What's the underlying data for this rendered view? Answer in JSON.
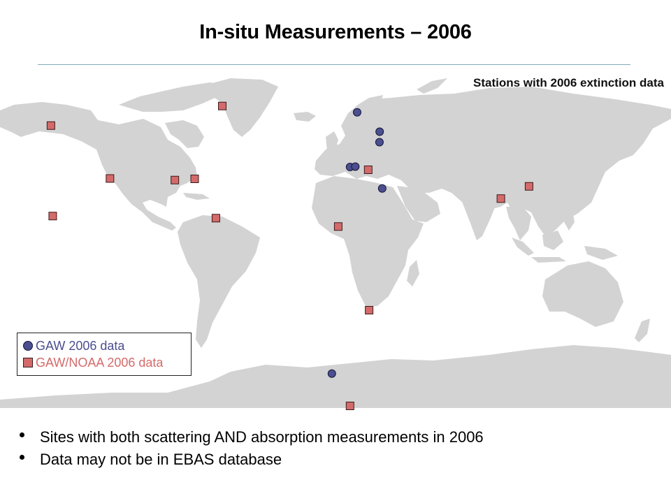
{
  "slide": {
    "title": "In-situ Measurements – 2006",
    "bullets": [
      "Sites with both scattering AND absorption measurements in 2006",
      "Data may  not be in EBAS database"
    ]
  },
  "map": {
    "heading": "Stations with 2006 extinction data",
    "land_color": "#d3d3d3",
    "legend": [
      {
        "label": "GAW 2006 data",
        "symbol": "circle",
        "color": "#4b4f8f",
        "text_color": "#4b4f8f"
      },
      {
        "label": "GAW/NOAA 2006 data",
        "symbol": "square",
        "color": "#d46a6a",
        "text_color": "#d46a6a"
      }
    ],
    "stations_gaw_circle": [
      {
        "lon": 11.9,
        "lat": 78.9
      },
      {
        "lon": 24.3,
        "lat": 67.8
      },
      {
        "lon": 24.2,
        "lat": 61.8
      },
      {
        "lon": 8.0,
        "lat": 47.6
      },
      {
        "lon": 10.9,
        "lat": 47.8
      },
      {
        "lon": 25.7,
        "lat": 35.3
      },
      {
        "lon": -2.0,
        "lat": -70.7
      }
    ],
    "stations_noaa_square": [
      {
        "lon": -62.3,
        "lat": 82.5
      },
      {
        "lon": -156.6,
        "lat": 71.3
      },
      {
        "lon": -124.1,
        "lat": 41.0
      },
      {
        "lon": -88.4,
        "lat": 40.1
      },
      {
        "lon": -77.5,
        "lat": 40.8
      },
      {
        "lon": -155.6,
        "lat": 19.5
      },
      {
        "lon": -65.8,
        "lat": 18.3
      },
      {
        "lon": 18.0,
        "lat": 46.0
      },
      {
        "lon": 106.5,
        "lat": 36.5
      },
      {
        "lon": 91.0,
        "lat": 29.5
      },
      {
        "lon": 1.5,
        "lat": 13.5
      },
      {
        "lon": 18.5,
        "lat": -34.4
      },
      {
        "lon": 8.0,
        "lat": -90.0
      }
    ]
  }
}
